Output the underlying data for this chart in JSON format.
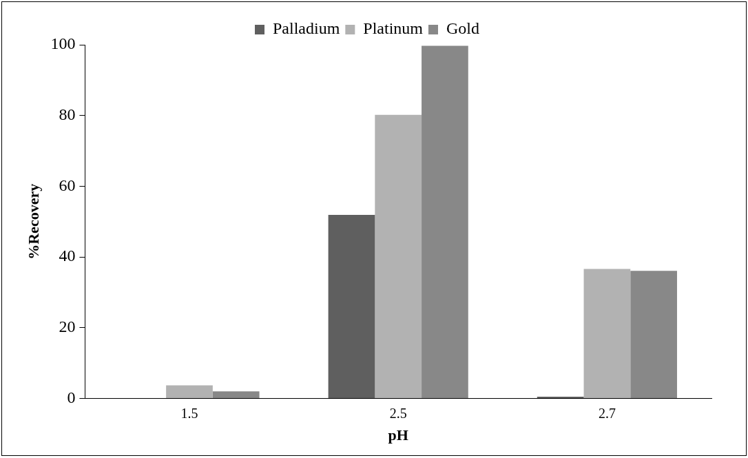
{
  "chart_data": {
    "type": "bar",
    "xlabel": "pH",
    "ylabel": "%Recovery",
    "categories": [
      "1.5",
      "2.5",
      "2.7"
    ],
    "series": [
      {
        "name": "Palladium",
        "color": "#5f5f5f",
        "values": [
          0,
          51.9,
          0.5
        ]
      },
      {
        "name": "Platinum",
        "color": "#b2b2b2",
        "values": [
          3.7,
          80.2,
          36.6
        ]
      },
      {
        "name": "Gold",
        "color": "#888888",
        "values": [
          2,
          99.7,
          36.1
        ]
      }
    ],
    "ylim": [
      0,
      100
    ],
    "yticks": [
      0,
      20,
      40,
      60,
      80,
      100
    ],
    "grid": false,
    "legend": "top"
  }
}
